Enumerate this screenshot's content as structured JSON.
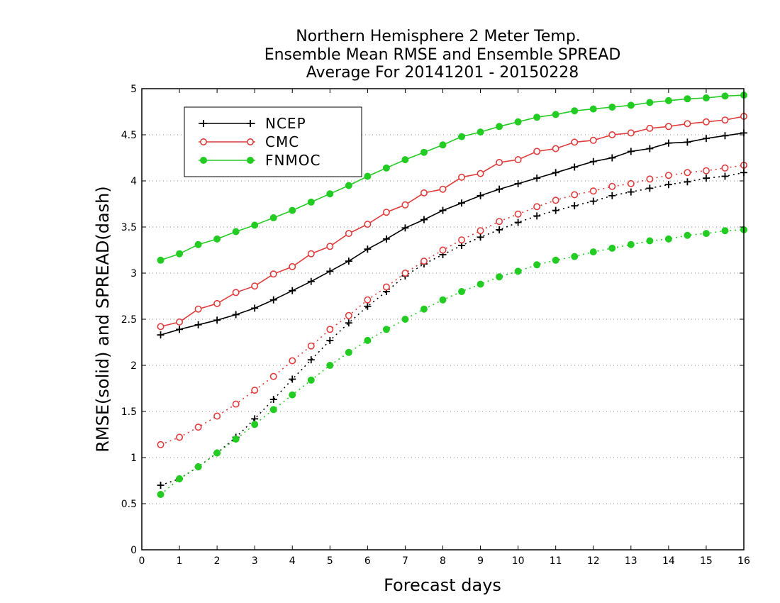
{
  "chart_data": {
    "type": "line",
    "title_lines": [
      "Northern Hemisphere 2 Meter Temp.",
      "Ensemble Mean RMSE and Ensemble SPREAD",
      "Average For 20141201 - 20150228"
    ],
    "xlabel": "Forecast days",
    "ylabel": "RMSE(solid) and SPREAD(dash)",
    "xlim": [
      0,
      16
    ],
    "ylim": [
      0,
      5
    ],
    "xticks": [
      "0",
      "1",
      "2",
      "3",
      "4",
      "5",
      "6",
      "7",
      "8",
      "9",
      "10",
      "11",
      "12",
      "13",
      "14",
      "15",
      "16"
    ],
    "yticks": [
      "0",
      "0.5",
      "1",
      "1.5",
      "2",
      "2.5",
      "3",
      "3.5",
      "4",
      "4.5",
      "5"
    ],
    "grid": "horizontal dotted",
    "legend_position": "top-left",
    "x": [
      0.5,
      1,
      1.5,
      2,
      2.5,
      3,
      3.5,
      4,
      4.5,
      5,
      5.5,
      6,
      6.5,
      7,
      7.5,
      8,
      8.5,
      9,
      9.5,
      10,
      10.5,
      11,
      11.5,
      12,
      12.5,
      13,
      13.5,
      14,
      14.5,
      15,
      15.5,
      16
    ],
    "series": [
      {
        "name": "NCEP",
        "color": "#000000",
        "marker": "plus",
        "rmse": [
          2.33,
          2.39,
          2.44,
          2.49,
          2.55,
          2.62,
          2.71,
          2.81,
          2.91,
          3.02,
          3.13,
          3.26,
          3.37,
          3.49,
          3.58,
          3.68,
          3.76,
          3.84,
          3.91,
          3.97,
          4.03,
          4.09,
          4.15,
          4.21,
          4.25,
          4.32,
          4.35,
          4.41,
          4.42,
          4.46,
          4.49,
          4.52
        ],
        "spread": [
          0.7,
          0.77,
          0.9,
          1.05,
          1.22,
          1.42,
          1.63,
          1.85,
          2.06,
          2.27,
          2.46,
          2.64,
          2.8,
          2.97,
          3.1,
          3.2,
          3.3,
          3.39,
          3.47,
          3.55,
          3.62,
          3.68,
          3.73,
          3.78,
          3.84,
          3.88,
          3.92,
          3.96,
          3.99,
          4.03,
          4.05,
          4.09
        ]
      },
      {
        "name": "CMC",
        "color": "#e03c3c",
        "marker": "open-circle",
        "rmse": [
          2.42,
          2.47,
          2.61,
          2.67,
          2.79,
          2.86,
          2.99,
          3.07,
          3.21,
          3.29,
          3.43,
          3.53,
          3.66,
          3.74,
          3.87,
          3.91,
          4.04,
          4.08,
          4.2,
          4.23,
          4.32,
          4.35,
          4.42,
          4.44,
          4.5,
          4.52,
          4.57,
          4.59,
          4.62,
          4.64,
          4.66,
          4.7
        ],
        "spread": [
          1.14,
          1.22,
          1.33,
          1.45,
          1.58,
          1.73,
          1.88,
          2.05,
          2.21,
          2.39,
          2.54,
          2.71,
          2.85,
          3.0,
          3.13,
          3.25,
          3.36,
          3.46,
          3.56,
          3.64,
          3.72,
          3.79,
          3.85,
          3.89,
          3.94,
          3.97,
          4.02,
          4.06,
          4.09,
          4.11,
          4.14,
          4.17
        ]
      },
      {
        "name": "FNMOC",
        "color": "#22cc22",
        "marker": "filled-circle",
        "rmse": [
          3.14,
          3.21,
          3.31,
          3.37,
          3.45,
          3.52,
          3.6,
          3.68,
          3.77,
          3.86,
          3.95,
          4.05,
          4.14,
          4.23,
          4.31,
          4.39,
          4.48,
          4.53,
          4.59,
          4.64,
          4.69,
          4.72,
          4.76,
          4.78,
          4.8,
          4.82,
          4.85,
          4.87,
          4.89,
          4.9,
          4.92,
          4.93
        ],
        "spread": [
          0.6,
          0.77,
          0.9,
          1.05,
          1.2,
          1.36,
          1.52,
          1.68,
          1.84,
          2.0,
          2.14,
          2.27,
          2.39,
          2.5,
          2.61,
          2.71,
          2.8,
          2.88,
          2.96,
          3.02,
          3.09,
          3.14,
          3.18,
          3.23,
          3.27,
          3.31,
          3.35,
          3.37,
          3.41,
          3.43,
          3.46,
          3.47
        ]
      }
    ]
  }
}
